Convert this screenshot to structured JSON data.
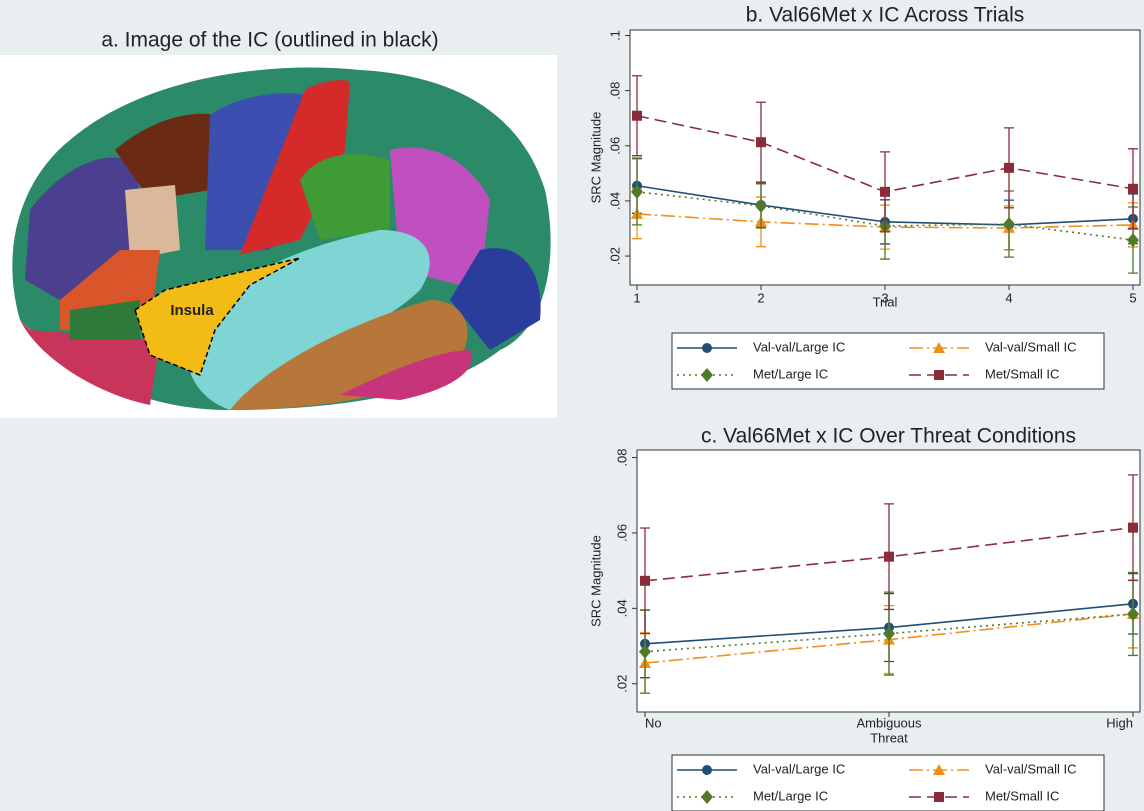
{
  "panel_a": {
    "title": "a.  Image of the IC (outlined in black)",
    "label": "Insula"
  },
  "chart_data": [
    {
      "type": "line",
      "title": "b. Val66Met x IC Across Trials",
      "x_label": "Trial",
      "y_label": "SRC Magnitude",
      "x": [
        1,
        2,
        3,
        4,
        5
      ],
      "xlim": [
        1,
        5
      ],
      "xticks": [
        1,
        2,
        3,
        4,
        5
      ],
      "ylim": [
        0.0095,
        0.102
      ],
      "yticks": [
        {
          "value": 0.02,
          "label": ".02"
        },
        {
          "value": 0.04,
          "label": ".04"
        },
        {
          "value": 0.06,
          "label": ".06"
        },
        {
          "value": 0.08,
          "label": ".08"
        },
        {
          "value": 0.1,
          "label": ".1"
        }
      ],
      "series": [
        {
          "name": "Val-val/Large IC",
          "color": "#1f4e79",
          "marker": "circle",
          "line_style": "solid",
          "values": [
            0.0455,
            0.0385,
            0.0324,
            0.0313,
            0.0335
          ],
          "errors": [
            0.01,
            0.008,
            0.008,
            0.009,
            0.009
          ]
        },
        {
          "name": "Val-val/Small IC",
          "color": "#f28e1c",
          "marker": "triangle",
          "line_style": "dashdot",
          "values": [
            0.0353,
            0.0324,
            0.0305,
            0.0302,
            0.0313
          ],
          "errors": [
            0.009,
            0.009,
            0.008,
            0.008,
            0.008
          ]
        },
        {
          "name": "Met/Large IC",
          "color": "#4f7a28",
          "marker": "diamond",
          "line_style": "dotted",
          "values": [
            0.0433,
            0.0382,
            0.0309,
            0.0316,
            0.0258
          ],
          "errors": [
            0.012,
            0.008,
            0.012,
            0.012,
            0.012
          ]
        },
        {
          "name": "Met/Small IC",
          "color": "#8b2c3a",
          "marker": "square",
          "line_style": "dashed",
          "values": [
            0.0709,
            0.0613,
            0.0433,
            0.052,
            0.0444
          ],
          "errors": [
            0.0145,
            0.0145,
            0.0145,
            0.0145,
            0.0145
          ]
        }
      ]
    },
    {
      "type": "line",
      "title": "c. Val66Met x IC Over Threat Conditions",
      "x_label": "Threat",
      "y_label": "SRC Magnitude",
      "categories": [
        "No",
        "Ambiguous",
        "High"
      ],
      "ylim": [
        0.0125,
        0.082
      ],
      "yticks": [
        {
          "value": 0.02,
          "label": ".02"
        },
        {
          "value": 0.04,
          "label": ".04"
        },
        {
          "value": 0.06,
          "label": ".06"
        },
        {
          "value": 0.08,
          "label": ".08"
        }
      ],
      "series": [
        {
          "name": "Val-val/Large IC",
          "color": "#1f4e79",
          "marker": "circle",
          "line_style": "solid",
          "values": [
            0.0306,
            0.0349,
            0.0412
          ],
          "errors": [
            0.009,
            0.009,
            0.008
          ]
        },
        {
          "name": "Val-val/Small IC",
          "color": "#f28e1c",
          "marker": "triangle",
          "line_style": "dashdot",
          "values": [
            0.0255,
            0.0317,
            0.0385
          ],
          "errors": [
            0.008,
            0.009,
            0.009
          ]
        },
        {
          "name": "Met/Large IC",
          "color": "#4f7a28",
          "marker": "diamond",
          "line_style": "dotted",
          "values": [
            0.0285,
            0.0333,
            0.0385
          ],
          "errors": [
            0.011,
            0.011,
            0.011
          ]
        },
        {
          "name": "Met/Small IC",
          "color": "#8b2c3a",
          "marker": "square",
          "line_style": "dashed",
          "values": [
            0.0473,
            0.0537,
            0.0614
          ],
          "errors": [
            0.014,
            0.014,
            0.014
          ]
        }
      ]
    }
  ]
}
